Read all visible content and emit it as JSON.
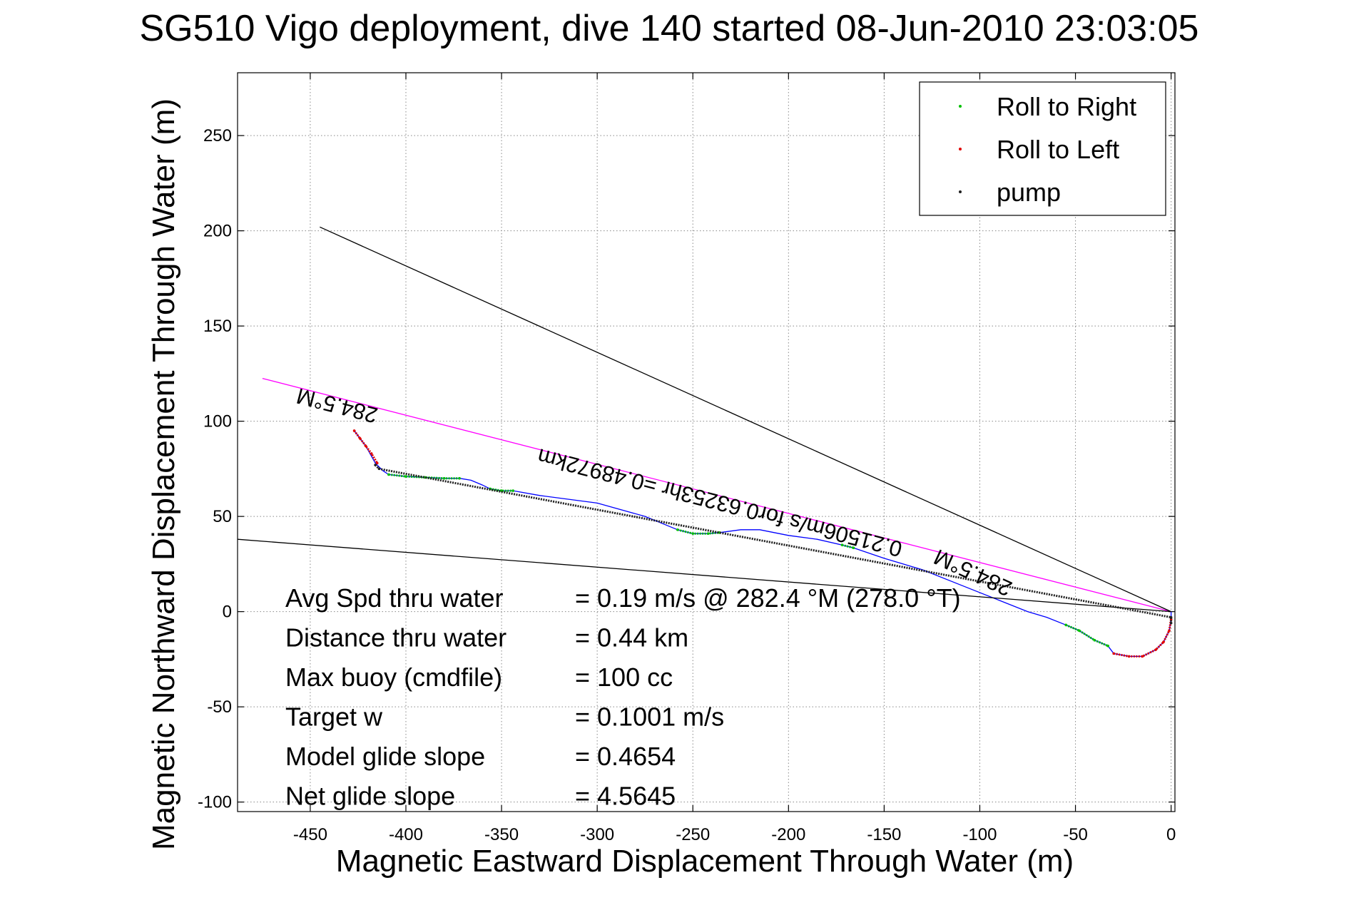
{
  "chart_data": {
    "type": "scatter",
    "title": "SG510 Vigo deployment, dive 140 started 08-Jun-2010 23:03:05",
    "xlabel": "Magnetic Eastward Displacement Through Water (m)",
    "ylabel": "Magnetic Northward Displacement Through Water (m)",
    "xlim": [
      -488,
      2
    ],
    "ylim": [
      -105,
      283
    ],
    "xticks": [
      -450,
      -400,
      -350,
      -300,
      -250,
      -200,
      -150,
      -100,
      -50,
      0
    ],
    "yticks": [
      -100,
      -50,
      0,
      50,
      100,
      150,
      200,
      250
    ],
    "grid": true,
    "legend_position": "top-right",
    "series": [
      {
        "name": "Roll to Right",
        "color": "#00c000",
        "type": "scatter",
        "segments": [
          [
            [
              -409,
              72
            ],
            [
              -400,
              71
            ],
            [
              -390,
              70.5
            ],
            [
              -380,
              70
            ],
            [
              -372,
              70
            ]
          ],
          [
            [
              -356,
              64.5
            ],
            [
              -350,
              63.5
            ],
            [
              -344,
              63.5
            ]
          ],
          [
            [
              -258,
              43
            ],
            [
              -250,
              41
            ],
            [
              -242,
              41
            ],
            [
              -236,
              41.5
            ]
          ],
          [
            [
              -172,
              35
            ],
            [
              -166,
              33.5
            ]
          ],
          [
            [
              -55,
              -7
            ],
            [
              -48,
              -10
            ],
            [
              -40,
              -15
            ],
            [
              -33,
              -18
            ]
          ]
        ]
      },
      {
        "name": "Roll to Left",
        "color": "#e00000",
        "type": "scatter",
        "segments": [
          [
            [
              -427,
              95
            ],
            [
              -424,
              91
            ],
            [
              -421,
              87
            ],
            [
              -418,
              83
            ],
            [
              -415,
              78
            ]
          ],
          [
            [
              -30,
              -22
            ],
            [
              -22,
              -23.5
            ],
            [
              -15,
              -23.5
            ],
            [
              -8,
              -20
            ],
            [
              -4,
              -16
            ],
            [
              -1,
              -10
            ],
            [
              0,
              -4
            ]
          ]
        ]
      },
      {
        "name": "pump",
        "color": "#202020",
        "type": "scatter",
        "points": [
          [
            -416,
            77
          ],
          [
            -414,
            75
          ],
          [
            0,
            -3
          ],
          [
            0,
            -6
          ]
        ]
      },
      {
        "name": "",
        "color": "#0000ff",
        "type": "line",
        "points": [
          [
            -427,
            95
          ],
          [
            -421,
            87
          ],
          [
            -416,
            78
          ],
          [
            -412,
            74
          ],
          [
            -409,
            72
          ],
          [
            -400,
            71
          ],
          [
            -390,
            70.5
          ],
          [
            -380,
            70
          ],
          [
            -372,
            70
          ],
          [
            -366,
            69
          ],
          [
            -360,
            66.5
          ],
          [
            -356,
            64.5
          ],
          [
            -350,
            63.5
          ],
          [
            -344,
            63.5
          ],
          [
            -330,
            61
          ],
          [
            -300,
            57
          ],
          [
            -275,
            50
          ],
          [
            -258,
            43
          ],
          [
            -250,
            41
          ],
          [
            -242,
            41
          ],
          [
            -236,
            41.5
          ],
          [
            -225,
            43
          ],
          [
            -215,
            43
          ],
          [
            -200,
            40
          ],
          [
            -185,
            38
          ],
          [
            -172,
            35
          ],
          [
            -166,
            33.5
          ],
          [
            -150,
            28
          ],
          [
            -130,
            22
          ],
          [
            -110,
            14
          ],
          [
            -90,
            6
          ],
          [
            -75,
            0
          ],
          [
            -65,
            -3
          ],
          [
            -55,
            -7
          ],
          [
            -48,
            -10
          ],
          [
            -40,
            -15
          ],
          [
            -33,
            -18
          ],
          [
            -30,
            -22
          ],
          [
            -22,
            -23.5
          ],
          [
            -15,
            -23.5
          ],
          [
            -8,
            -20
          ],
          [
            -4,
            -16
          ],
          [
            -1,
            -10
          ],
          [
            0,
            -4
          ],
          [
            0,
            0
          ]
        ]
      },
      {
        "name": "",
        "color": "#ff00ff",
        "type": "line",
        "points": [
          [
            -475,
            122.5
          ],
          [
            0,
            0
          ]
        ]
      },
      {
        "name": "",
        "color": "#000000",
        "type": "line",
        "points": [
          [
            -445,
            202
          ],
          [
            0,
            0
          ]
        ]
      },
      {
        "name": "",
        "color": "#000000",
        "type": "line",
        "points": [
          [
            -488,
            38
          ],
          [
            0,
            0
          ]
        ]
      }
    ],
    "annotations": [
      {
        "text": "284.5°M",
        "x": -435,
        "y": 112,
        "rotation": 194.5
      },
      {
        "text": "0.21506m/s for0.63253hr =0.48972km",
        "x": -235,
        "y": 61,
        "rotation": 194.5
      },
      {
        "text": "284.5°M",
        "x": -102,
        "y": 24,
        "rotation": 204.5
      }
    ],
    "stats": [
      {
        "label": "Avg Spd thru water",
        "value": "=  0.19 m/s @ 282.4 °M (278.0 °T)"
      },
      {
        "label": "Distance thru water",
        "value": "=  0.44 km"
      },
      {
        "label": "Max buoy (cmdfile)",
        "value": "= 100 cc"
      },
      {
        "label": "Target w",
        "value": "= 0.1001 m/s"
      },
      {
        "label": "Model glide slope",
        "value": "= 0.4654"
      },
      {
        "label": "Net glide slope",
        "value": "= 4.5645"
      }
    ]
  }
}
